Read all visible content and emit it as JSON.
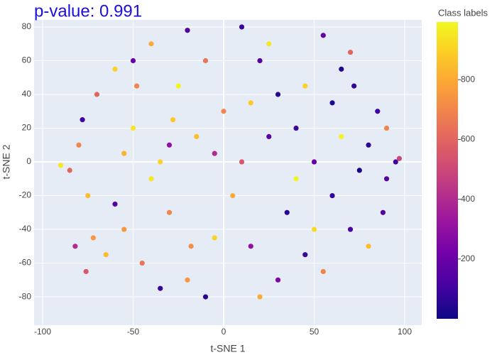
{
  "chart_data": {
    "type": "scatter",
    "title": "p-value: 0.991",
    "xlabel": "t-SNE 1",
    "ylabel": "t-SNE 2",
    "colorbar_title": "Class labels",
    "xlim": [
      -104.7,
      109.4
    ],
    "xticks": [
      -100,
      -50,
      0,
      50,
      100
    ],
    "ylim": [
      -96.8,
      84.2
    ],
    "yticks": [
      -80,
      -60,
      -40,
      -20,
      0,
      20,
      40,
      60,
      80
    ],
    "clim": [
      0,
      993
    ],
    "cticks": [
      200,
      400,
      600,
      800
    ],
    "colorscale": [
      "#0d0887",
      "#46039f",
      "#7201a8",
      "#9c179e",
      "#bd3786",
      "#d8576b",
      "#ed7953",
      "#fb9f3a",
      "#fdca26",
      "#f0f921"
    ],
    "grid": true,
    "x": [
      -80,
      -75,
      -70,
      -60,
      -55,
      -50,
      -45,
      -40,
      -35,
      -30,
      -25,
      -20,
      -15,
      -10,
      -5,
      0,
      5,
      -65,
      -85,
      -72,
      -40,
      -28,
      -18,
      -55,
      -48,
      -78,
      -60,
      -35,
      -20,
      -50,
      -10,
      -30,
      -5,
      10,
      20,
      30,
      40,
      50,
      60,
      70,
      80,
      90,
      85,
      65,
      55,
      45,
      30,
      15,
      75,
      95,
      88,
      72,
      60,
      25,
      35,
      25,
      45,
      65,
      80,
      55,
      20,
      40,
      90,
      70,
      10,
      15,
      50,
      -90,
      97,
      -82,
      -76
    ],
    "y": [
      10,
      -20,
      40,
      55,
      -40,
      20,
      -60,
      70,
      0,
      -30,
      45,
      -70,
      15,
      60,
      -45,
      30,
      -20,
      -55,
      -5,
      -45,
      -10,
      25,
      -50,
      5,
      45,
      25,
      -25,
      -75,
      78,
      60,
      -80,
      10,
      5,
      80,
      60,
      40,
      20,
      0,
      -20,
      -40,
      10,
      -10,
      30,
      55,
      75,
      -55,
      -70,
      -50,
      -5,
      0,
      -30,
      45,
      35,
      15,
      -30,
      70,
      45,
      15,
      -50,
      -65,
      -80,
      -10,
      20,
      65,
      0,
      35,
      -40,
      -2,
      2,
      -50,
      -65
    ],
    "color_values": [
      700,
      850,
      600,
      900,
      750,
      950,
      650,
      800,
      900,
      700,
      980,
      750,
      850,
      650,
      900,
      700,
      800,
      850,
      600,
      750,
      950,
      880,
      720,
      820,
      690,
      100,
      150,
      80,
      120,
      200,
      60,
      300,
      400,
      90,
      150,
      50,
      100,
      200,
      80,
      120,
      60,
      150,
      100,
      40,
      180,
      90,
      250,
      300,
      20,
      100,
      140,
      70,
      30,
      160,
      60,
      950,
      900,
      980,
      850,
      700,
      800,
      980,
      700,
      600,
      550,
      880,
      920,
      950,
      500,
      400,
      550
    ]
  }
}
